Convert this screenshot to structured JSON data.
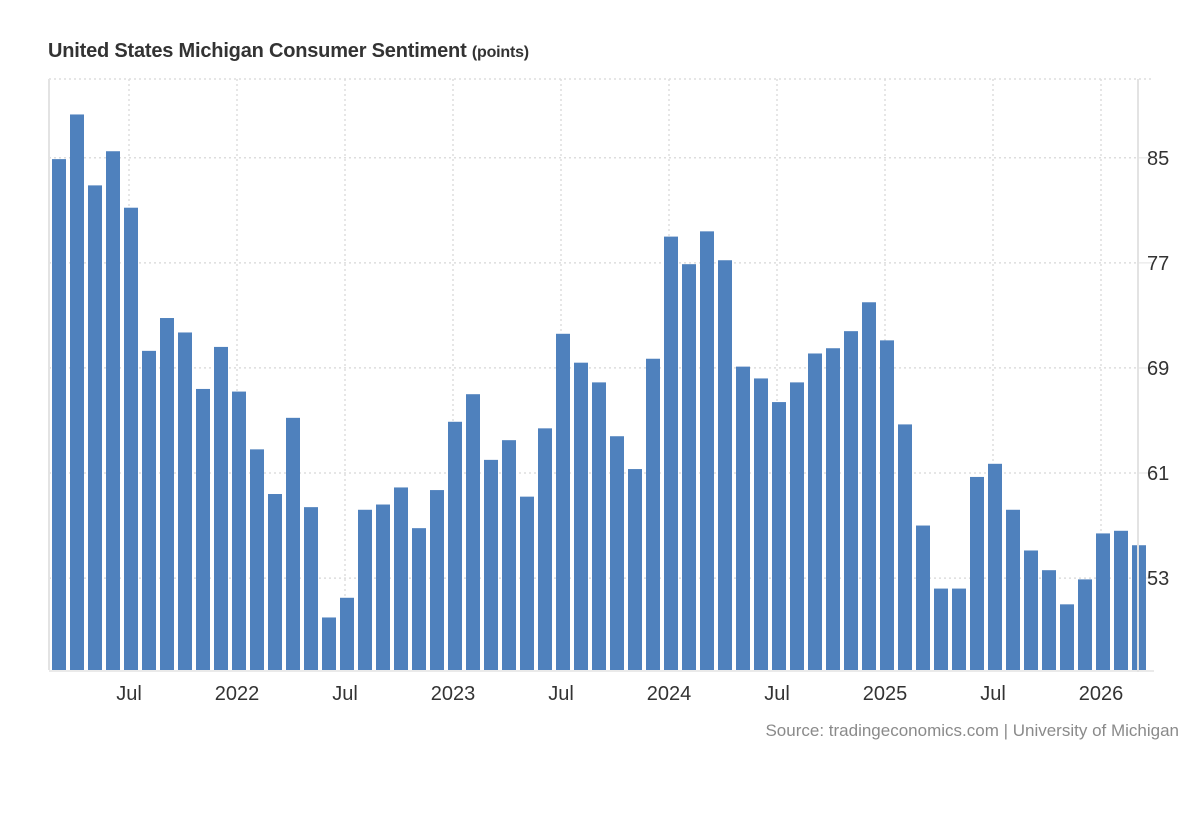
{
  "title": "United States Michigan Consumer Sentiment",
  "unit": "(points)",
  "source": "Source: tradingeconomics.com | University of Michigan",
  "colors": {
    "bar": "#4f81bd",
    "grid": "#dddddd",
    "axis": "#e3e3e3",
    "text": "#333333",
    "source": "#8a8a8a"
  },
  "chart_data": {
    "type": "bar",
    "title": "United States Michigan Consumer Sentiment (points)",
    "xlabel": "",
    "ylabel": "points",
    "ylim": [
      46,
      91
    ],
    "grid": true,
    "y_axis_side": "right",
    "yticks": [
      53,
      61,
      69,
      77,
      85
    ],
    "xticks": [
      {
        "label": "Jul",
        "index": 4
      },
      {
        "label": "2022",
        "index": 10
      },
      {
        "label": "Jul",
        "index": 16
      },
      {
        "label": "2023",
        "index": 22
      },
      {
        "label": "Jul",
        "index": 28
      },
      {
        "label": "2024",
        "index": 34
      },
      {
        "label": "Jul",
        "index": 40
      },
      {
        "label": "2025",
        "index": 46
      },
      {
        "label": "Jul",
        "index": 52
      },
      {
        "label": "2026",
        "index": 58
      }
    ],
    "categories": [
      "2021-03",
      "2021-04",
      "2021-05",
      "2021-06",
      "2021-07",
      "2021-08",
      "2021-09",
      "2021-10",
      "2021-11",
      "2021-12",
      "2022-01",
      "2022-02",
      "2022-03",
      "2022-04",
      "2022-05",
      "2022-06",
      "2022-07",
      "2022-08",
      "2022-09",
      "2022-10",
      "2022-11",
      "2022-12",
      "2023-01",
      "2023-02",
      "2023-03",
      "2023-04",
      "2023-05",
      "2023-06",
      "2023-07",
      "2023-08",
      "2023-09",
      "2023-10",
      "2023-11",
      "2023-12",
      "2024-01",
      "2024-02",
      "2024-03",
      "2024-04",
      "2024-05",
      "2024-06",
      "2024-07",
      "2024-08",
      "2024-09",
      "2024-10",
      "2024-11",
      "2024-12",
      "2025-01",
      "2025-02",
      "2025-03",
      "2025-04",
      "2025-05",
      "2025-06",
      "2025-07",
      "2025-08",
      "2025-09",
      "2025-10",
      "2025-11",
      "2025-12",
      "2026-01",
      "2026-02",
      "2026-03"
    ],
    "values": [
      84.9,
      88.3,
      82.9,
      85.5,
      81.2,
      70.3,
      72.8,
      71.7,
      67.4,
      70.6,
      67.2,
      62.8,
      59.4,
      65.2,
      58.4,
      50.0,
      51.5,
      58.2,
      58.6,
      59.9,
      56.8,
      59.7,
      64.9,
      67.0,
      62.0,
      63.5,
      59.2,
      64.4,
      71.6,
      69.4,
      67.9,
      63.8,
      61.3,
      69.7,
      79.0,
      76.9,
      79.4,
      77.2,
      69.1,
      68.2,
      66.4,
      67.9,
      70.1,
      70.5,
      71.8,
      74.0,
      71.1,
      64.7,
      57.0,
      52.2,
      52.2,
      60.7,
      61.7,
      58.2,
      55.1,
      53.6,
      51.0,
      52.9,
      56.4,
      56.6,
      55.5
    ]
  }
}
